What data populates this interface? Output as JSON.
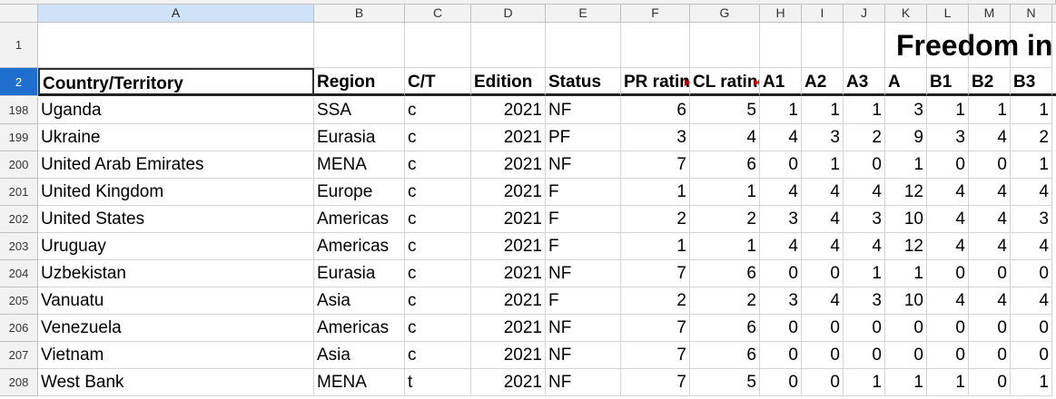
{
  "column_headers": [
    "A",
    "B",
    "C",
    "D",
    "E",
    "F",
    "G",
    "H",
    "I",
    "J",
    "K",
    "L",
    "M",
    "N"
  ],
  "row_numbers": [
    1,
    2,
    198,
    199,
    200,
    201,
    202,
    203,
    204,
    205,
    206,
    207,
    208
  ],
  "title": "Freedom in",
  "table": {
    "header": [
      "Country/Territory",
      "Region",
      "C/T",
      "Edition",
      "Status",
      "PR rating",
      "CL rating",
      "A1",
      "A2",
      "A3",
      "A",
      "B1",
      "B2",
      "B3"
    ],
    "rows": [
      [
        "Uganda",
        "SSA",
        "c",
        2021,
        "NF",
        6,
        5,
        1,
        1,
        1,
        3,
        1,
        1,
        1
      ],
      [
        "Ukraine",
        "Eurasia",
        "c",
        2021,
        "PF",
        3,
        4,
        4,
        3,
        2,
        9,
        3,
        4,
        2
      ],
      [
        "United Arab Emirates",
        "MENA",
        "c",
        2021,
        "NF",
        7,
        6,
        0,
        1,
        0,
        1,
        0,
        0,
        1
      ],
      [
        "United Kingdom",
        "Europe",
        "c",
        2021,
        "F",
        1,
        1,
        4,
        4,
        4,
        12,
        4,
        4,
        4
      ],
      [
        "United States",
        "Americas",
        "c",
        2021,
        "F",
        2,
        2,
        3,
        4,
        3,
        10,
        4,
        4,
        3
      ],
      [
        "Uruguay",
        "Americas",
        "c",
        2021,
        "F",
        1,
        1,
        4,
        4,
        4,
        12,
        4,
        4,
        4
      ],
      [
        "Uzbekistan",
        "Eurasia",
        "c",
        2021,
        "NF",
        7,
        6,
        0,
        0,
        1,
        1,
        0,
        0,
        0
      ],
      [
        "Vanuatu",
        "Asia",
        "c",
        2021,
        "F",
        2,
        2,
        3,
        4,
        3,
        10,
        4,
        4,
        4
      ],
      [
        "Venezuela",
        "Americas",
        "c",
        2021,
        "NF",
        7,
        6,
        0,
        0,
        0,
        0,
        0,
        0,
        0
      ],
      [
        "Vietnam",
        "Asia",
        "c",
        2021,
        "NF",
        7,
        6,
        0,
        0,
        0,
        0,
        0,
        0,
        0
      ],
      [
        "West Bank",
        "MENA",
        "t",
        2021,
        "NF",
        7,
        5,
        0,
        0,
        1,
        1,
        1,
        0,
        1
      ]
    ]
  }
}
